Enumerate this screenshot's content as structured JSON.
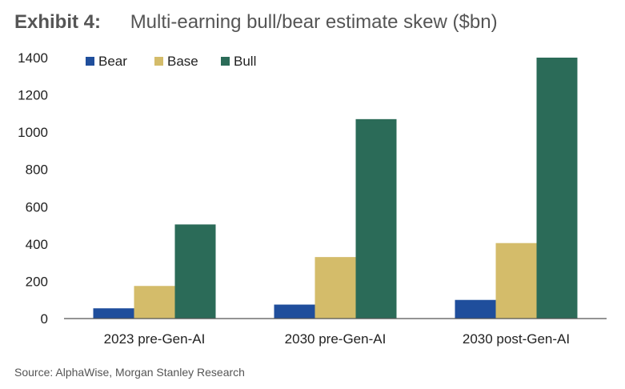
{
  "exhibit_label": "Exhibit 4:",
  "source": "Source: AlphaWise, Morgan Stanley Research",
  "chart_data": {
    "type": "bar",
    "title": "Multi-earning bull/bear estimate skew ($bn)",
    "xlabel": "",
    "ylabel": "",
    "categories": [
      "2023 pre-Gen-AI",
      "2030 pre-Gen-AI",
      "2030 post-Gen-AI"
    ],
    "series": [
      {
        "name": "Bear",
        "color": "#1f4e9c",
        "values": [
          55,
          75,
          100
        ]
      },
      {
        "name": "Base",
        "color": "#d4bc6a",
        "values": [
          175,
          330,
          405
        ]
      },
      {
        "name": "Bull",
        "color": "#2b6b58",
        "values": [
          505,
          1070,
          1400
        ]
      }
    ],
    "ylim": [
      0,
      1400
    ],
    "yticks": [
      "0",
      "200",
      "400",
      "600",
      "800",
      "1000",
      "1200",
      "1400"
    ],
    "legend_position": "top-left",
    "grid": false
  }
}
